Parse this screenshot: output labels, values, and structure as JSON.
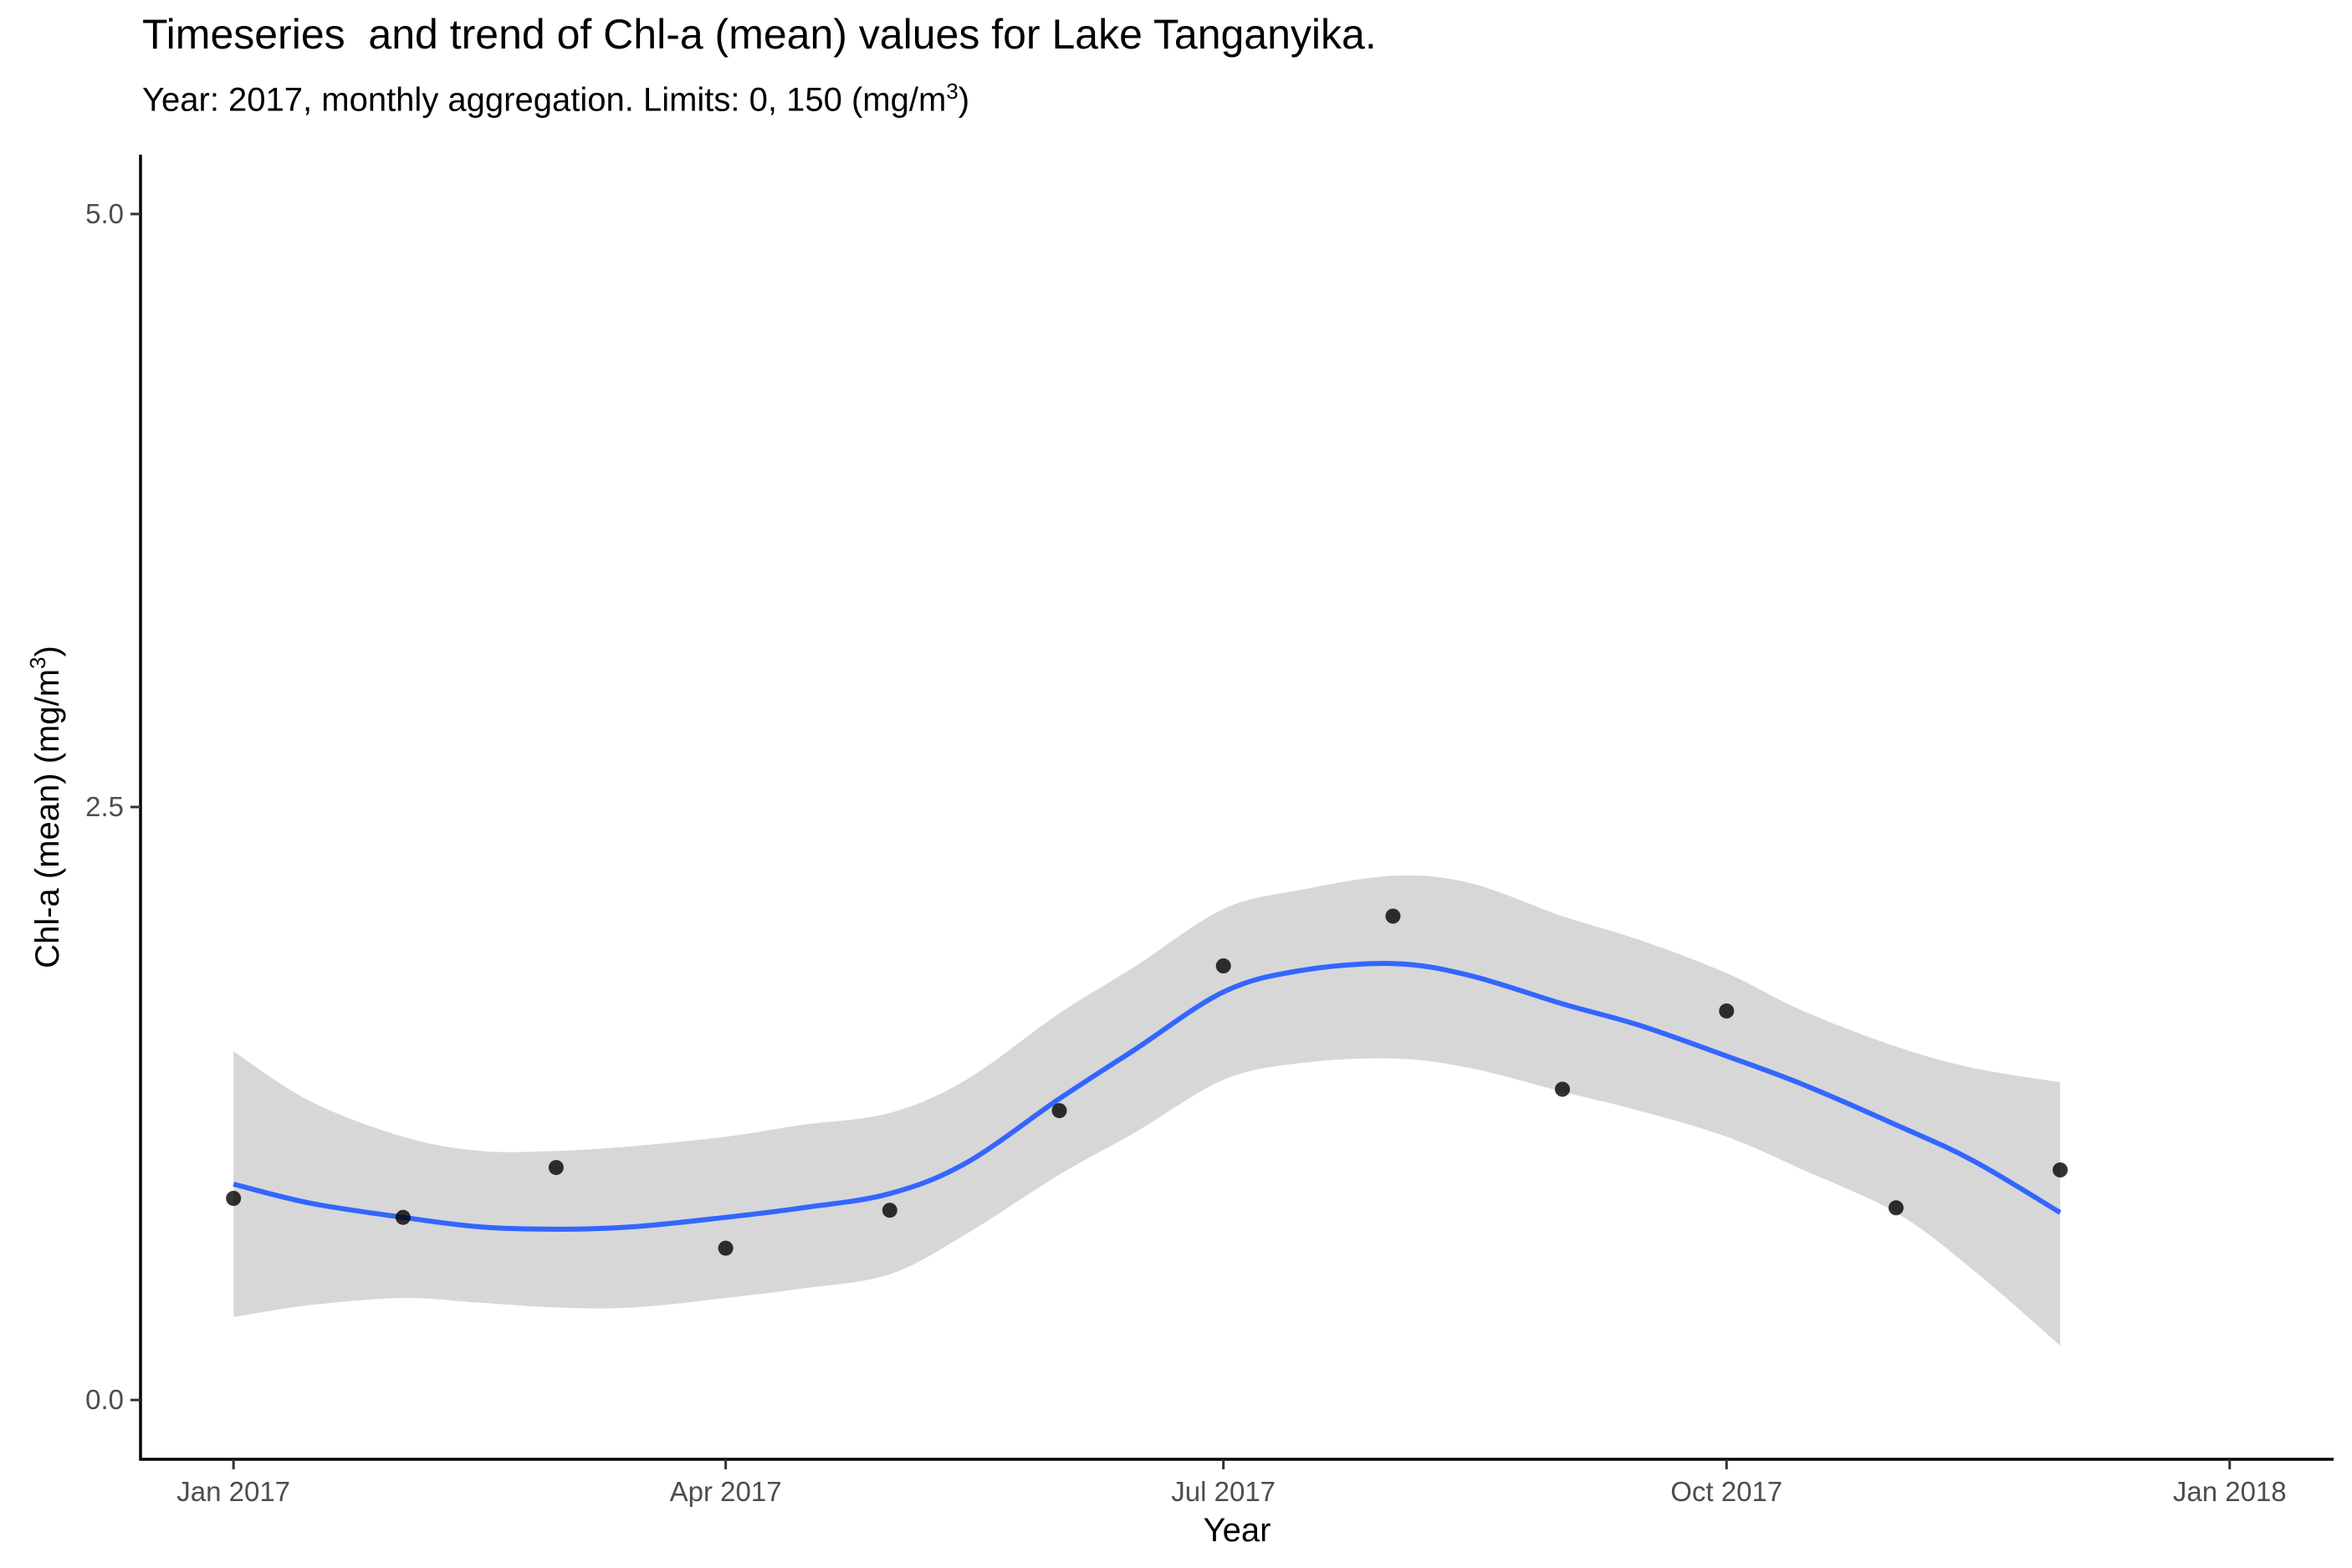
{
  "chart_data": {
    "type": "line",
    "title": "Timeseries  and trend of Chl-a (mean) values for Lake Tanganyika.",
    "subtitle": {
      "prefix": "Year: 2017, monthly aggregation. Limits: 0, 150 (mg/m",
      "superscript": "3",
      "suffix": ")"
    },
    "xlabel": "Year",
    "ylabel": {
      "prefix": "Chl-a (mean) (mg/m",
      "superscript": "3",
      "suffix": ")"
    },
    "xlim": [
      "2016-12-15",
      "2018-01-20"
    ],
    "ylim": [
      -0.25,
      5.25
    ],
    "x_ticks": [
      {
        "date": "2017-01-01",
        "label": "Jan 2017"
      },
      {
        "date": "2017-04-01",
        "label": "Apr 2017"
      },
      {
        "date": "2017-07-01",
        "label": "Jul 2017"
      },
      {
        "date": "2017-10-01",
        "label": "Oct 2017"
      },
      {
        "date": "2018-01-01",
        "label": "Jan 2018"
      }
    ],
    "y_ticks": [
      {
        "value": 0.0,
        "label": "0.0"
      },
      {
        "value": 2.5,
        "label": "2.5"
      },
      {
        "value": 5.0,
        "label": "5.0"
      }
    ],
    "grid": false,
    "series": [
      {
        "kind": "points",
        "color": "#000000",
        "x": [
          "2017-01-01",
          "2017-02-01",
          "2017-03-01",
          "2017-04-01",
          "2017-05-01",
          "2017-06-01",
          "2017-07-01",
          "2017-08-01",
          "2017-09-01",
          "2017-10-01",
          "2017-11-01",
          "2017-12-01"
        ],
        "y": [
          0.85,
          0.77,
          0.98,
          0.64,
          0.8,
          1.22,
          1.83,
          2.04,
          1.31,
          1.64,
          0.81,
          0.97
        ]
      },
      {
        "kind": "smooth",
        "color": "#3366FF",
        "band_color": "#D3D3D3",
        "x": [
          "2017-01-01",
          "2017-01-15",
          "2017-02-01",
          "2017-02-15",
          "2017-03-01",
          "2017-03-15",
          "2017-04-01",
          "2017-04-15",
          "2017-05-01",
          "2017-05-15",
          "2017-06-01",
          "2017-06-15",
          "2017-07-01",
          "2017-07-15",
          "2017-08-01",
          "2017-08-15",
          "2017-09-01",
          "2017-09-15",
          "2017-10-01",
          "2017-10-15",
          "2017-11-01",
          "2017-11-15",
          "2017-12-01"
        ],
        "y": [
          0.91,
          0.83,
          0.77,
          0.73,
          0.72,
          0.73,
          0.77,
          0.81,
          0.87,
          1.0,
          1.27,
          1.48,
          1.72,
          1.81,
          1.84,
          1.79,
          1.67,
          1.58,
          1.45,
          1.33,
          1.16,
          1.01,
          0.79
        ],
        "lower": [
          0.35,
          0.4,
          0.43,
          0.41,
          0.39,
          0.39,
          0.43,
          0.47,
          0.53,
          0.7,
          0.95,
          1.13,
          1.35,
          1.42,
          1.44,
          1.4,
          1.3,
          1.22,
          1.11,
          0.97,
          0.79,
          0.55,
          0.23
        ],
        "upper": [
          1.47,
          1.26,
          1.11,
          1.05,
          1.05,
          1.07,
          1.11,
          1.16,
          1.21,
          1.35,
          1.63,
          1.83,
          2.07,
          2.15,
          2.21,
          2.18,
          2.04,
          1.94,
          1.8,
          1.64,
          1.49,
          1.4,
          1.34
        ]
      }
    ]
  }
}
